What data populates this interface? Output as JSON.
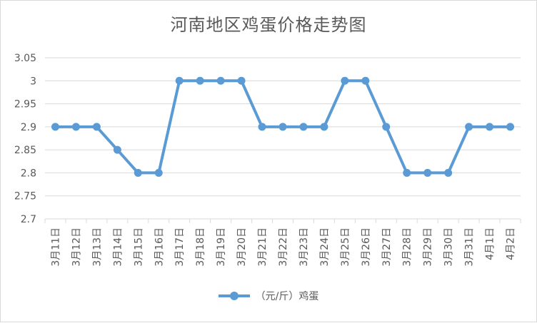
{
  "colors": {
    "series": "#5b9bd5",
    "grid": "#d9d9d9",
    "text": "#595959"
  },
  "chart_data": {
    "type": "line",
    "title": "河南地区鸡蛋价格走势图",
    "xlabel": "",
    "ylabel": "",
    "ylim": [
      2.7,
      3.05
    ],
    "yticks": [
      "2.7",
      "2.75",
      "2.8",
      "2.85",
      "2.9",
      "2.95",
      "3",
      "3.05"
    ],
    "grid": true,
    "legend_position": "bottom",
    "categories": [
      "3月11日",
      "3月12日",
      "3月13日",
      "3月14日",
      "3月15日",
      "3月16日",
      "3月17日",
      "3月18日",
      "3月19日",
      "3月20日",
      "3月21日",
      "3月22日",
      "3月23日",
      "3月24日",
      "3月25日",
      "3月26日",
      "3月27日",
      "3月28日",
      "3月29日",
      "3月30日",
      "3月31日",
      "4月1日",
      "4月2日"
    ],
    "series": [
      {
        "name": "（元/斤）鸡蛋",
        "values": [
          2.9,
          2.9,
          2.9,
          2.85,
          2.8,
          2.8,
          3.0,
          3.0,
          3.0,
          3.0,
          2.9,
          2.9,
          2.9,
          2.9,
          3.0,
          3.0,
          2.9,
          2.8,
          2.8,
          2.8,
          2.9,
          2.9,
          2.9
        ]
      }
    ]
  }
}
